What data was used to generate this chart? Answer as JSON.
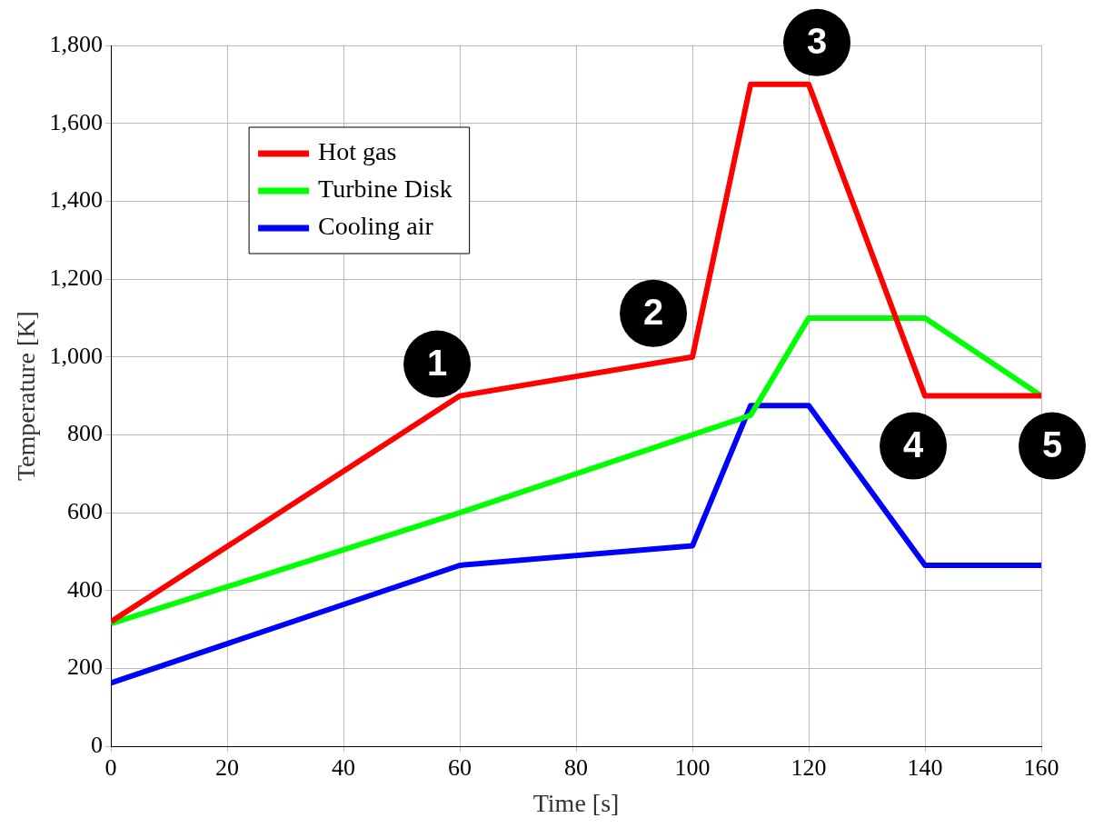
{
  "chart_data": {
    "type": "line",
    "xlabel": "Time [s]",
    "ylabel": "Temperature [K]",
    "x": [
      0,
      60,
      100,
      110,
      120,
      140,
      160
    ],
    "series": [
      {
        "name": "Hot gas",
        "color": "#ff0000",
        "values": [
          320,
          900,
          1000,
          1700,
          1700,
          900,
          900
        ]
      },
      {
        "name": "Turbine Disk",
        "color": "#00ff00",
        "values": [
          315,
          600,
          800,
          850,
          1100,
          1100,
          900
        ]
      },
      {
        "name": "Cooling air",
        "color": "#0000ff",
        "values": [
          163,
          465,
          515,
          875,
          875,
          465,
          465
        ]
      }
    ],
    "xlim": [
      0,
      160
    ],
    "xticks": [
      0,
      20,
      40,
      60,
      80,
      100,
      120,
      140,
      160
    ],
    "ylim": [
      0,
      1800
    ],
    "yticks": [
      0,
      200,
      400,
      600,
      800,
      {
        "value": 1000,
        "label": "1,000"
      },
      {
        "value": 1200,
        "label": "1,200"
      },
      {
        "value": 1400,
        "label": "1,400"
      },
      {
        "value": 1600,
        "label": "1,600"
      },
      {
        "value": 1800,
        "label": "1,800"
      }
    ],
    "annotations": [
      {
        "text": "1",
        "x": 60,
        "y": 900
      },
      {
        "text": "2",
        "x": 100,
        "y": 1000
      },
      {
        "text": "3",
        "x": 120,
        "y": 1700
      },
      {
        "text": "4",
        "x": 140,
        "y": 900
      },
      {
        "text": "5",
        "x": 160,
        "y": 900
      }
    ],
    "grid": true,
    "legend": "top left",
    "marker": "none",
    "line_style": "solid"
  }
}
